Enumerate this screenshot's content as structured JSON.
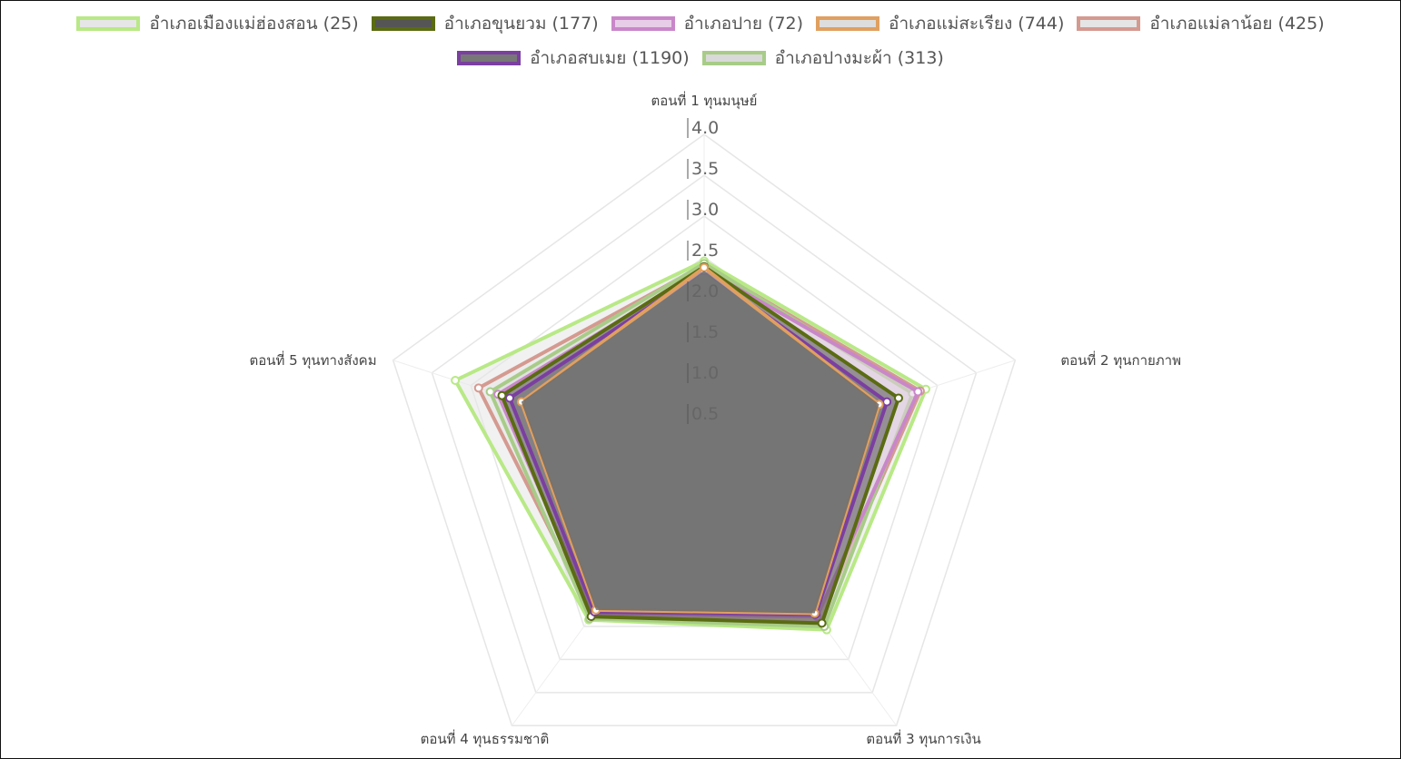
{
  "chart_data": {
    "type": "radar",
    "axes": [
      "ตอนที่ 1 ทุนมนุษย์",
      "ตอนที่ 2 ทุนกายภาพ",
      "ตอนที่ 3 ทุนการเงิน",
      "ตอนที่ 4 ทุนธรรมชาติ",
      "ตอนที่ 5 ทุนทางสังคม"
    ],
    "r_ticks": [
      "0.5",
      "1.0",
      "1.5",
      "2.0",
      "2.5",
      "3.0",
      "3.5",
      "4.0"
    ],
    "r_range": [
      0,
      4.0
    ],
    "series": [
      {
        "name": "อำเภอเมืองแม่ฮ่องสอน (25)",
        "values": [
          2.45,
          2.85,
          2.55,
          2.4,
          3.2
        ],
        "stroke": "#b8e986",
        "fill": "#e6e6e6"
      },
      {
        "name": "อำเภอขุนยวม (177)",
        "values": [
          2.38,
          2.5,
          2.45,
          2.35,
          2.6
        ],
        "stroke": "#5a6b12",
        "fill": "#555555"
      },
      {
        "name": "อำเภอปาย (72)",
        "values": [
          2.35,
          2.75,
          2.35,
          2.3,
          2.65
        ],
        "stroke": "#c987c9",
        "fill": "#e8cde8"
      },
      {
        "name": "อำเภอแม่สะเรียง (744)",
        "values": [
          2.37,
          2.25,
          2.3,
          2.25,
          2.35
        ],
        "stroke": "#e0a060",
        "fill": "#dddddd"
      },
      {
        "name": "อำเภอแม่ลาน้อย (425)",
        "values": [
          2.4,
          2.78,
          2.4,
          2.32,
          2.9
        ],
        "stroke": "#d49a90",
        "fill": "#e5e5e5"
      },
      {
        "name": "อำเภอสบเมย (1190)",
        "values": [
          2.33,
          2.35,
          2.32,
          2.28,
          2.5
        ],
        "stroke": "#7b3fa0",
        "fill": "#777777"
      },
      {
        "name": "อำเภอปางมะผ้า (313)",
        "values": [
          2.42,
          2.68,
          2.5,
          2.38,
          2.75
        ],
        "stroke": "#a8cc88",
        "fill": "#d9d9d9"
      }
    ],
    "legend_position": "top",
    "grid": true
  },
  "legend_rows": [
    [
      0,
      1,
      2,
      3,
      4
    ],
    [
      5,
      6
    ]
  ]
}
